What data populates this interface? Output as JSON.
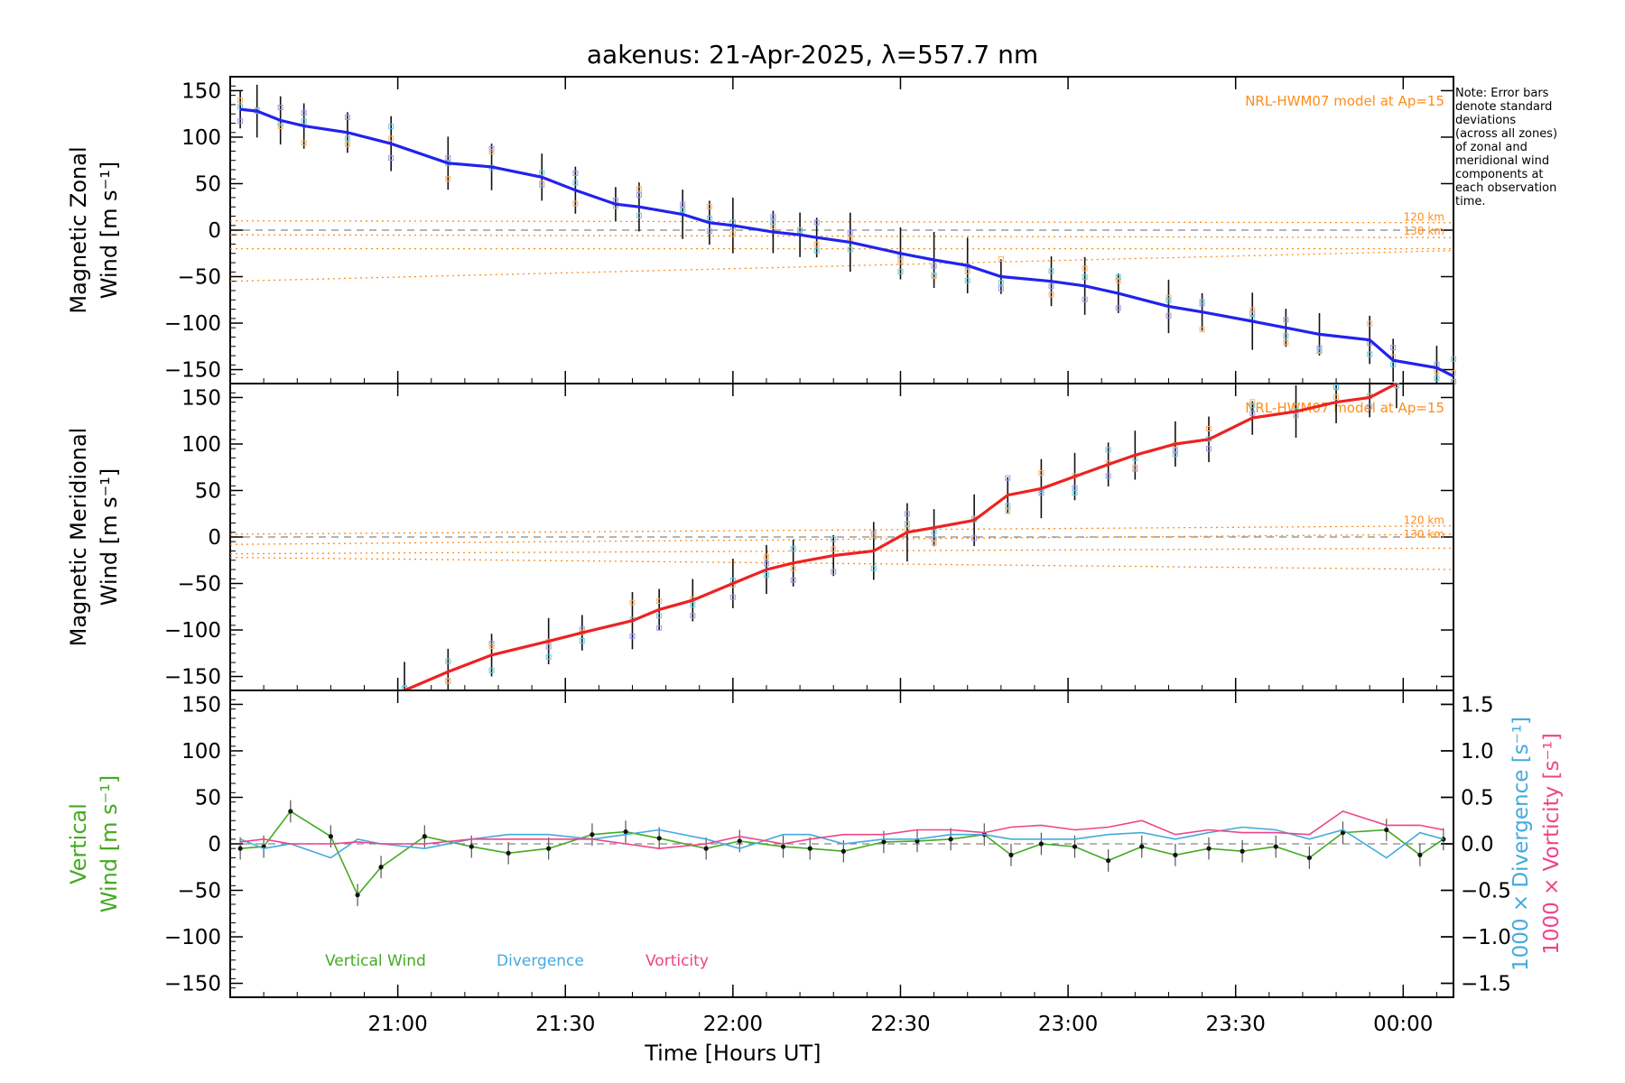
{
  "title": "aakenus: 21-Apr-2025, λ=557.7 nm",
  "note": [
    "Note: Error bars",
    "denote standard",
    "deviations",
    "(across all zones)",
    "of zonal and",
    "meridional wind",
    "components at",
    "each observation",
    "time."
  ],
  "colors": {
    "zonal": "#2222ee",
    "meridional": "#ee2222",
    "vertical": "#44aa22",
    "divergence": "#44aadd",
    "vorticity": "#ee4488",
    "model": "#ff8c1a",
    "axis": "#000000",
    "zero": "#888888"
  },
  "chart_data": {
    "type": "line",
    "xlabel": "Time [Hours UT]",
    "x_ticks": [
      "21:00",
      "21:30",
      "22:00",
      "22:30",
      "23:00",
      "23:30",
      "00:00"
    ],
    "x_tick_hours": [
      21,
      21.5,
      22,
      22.5,
      23,
      23.5,
      24
    ],
    "x_range_hours": [
      20.5,
      24.15
    ],
    "model_label": "NRL-HWM07 model at Ap=15",
    "model_altitudes": [
      "120 km",
      "130 km"
    ],
    "panels": [
      {
        "ylabel_lines": [
          "Magnetic Zonal",
          "Wind [m s⁻¹]"
        ],
        "ylim": [
          -165,
          165
        ],
        "yticks": [
          150,
          100,
          50,
          0,
          -50,
          -100,
          -150
        ],
        "series": [
          {
            "name": "Zonal wind",
            "times": [
              20.53,
              20.58,
              20.65,
              20.72,
              20.85,
              20.98,
              21.15,
              21.28,
              21.43,
              21.53,
              21.65,
              21.72,
              21.85,
              21.93,
              22.0,
              22.12,
              22.2,
              22.25,
              22.35,
              22.5,
              22.6,
              22.7,
              22.8,
              22.95,
              23.05,
              23.15,
              23.3,
              23.4,
              23.55,
              23.65,
              23.75,
              23.9,
              23.97,
              24.1,
              24.15
            ],
            "values": [
              130,
              128,
              118,
              112,
              105,
              93,
              72,
              68,
              57,
              43,
              28,
              25,
              17,
              8,
              5,
              -2,
              -5,
              -8,
              -13,
              -25,
              -32,
              -38,
              -50,
              -55,
              -60,
              -68,
              -82,
              -88,
              -98,
              -105,
              -112,
              -118,
              -140,
              -148,
              -157
            ]
          }
        ]
      },
      {
        "ylabel_lines": [
          "Magnetic Meridional",
          "Wind [m s⁻¹]"
        ],
        "ylim": [
          -165,
          165
        ],
        "yticks": [
          150,
          100,
          50,
          0,
          -50,
          -100,
          -150
        ],
        "series": [
          {
            "name": "Meridional wind",
            "times": [
              21.02,
              21.15,
              21.28,
              21.45,
              21.55,
              21.7,
              21.78,
              21.88,
              22.0,
              22.1,
              22.18,
              22.3,
              22.42,
              22.52,
              22.6,
              22.72,
              22.82,
              22.92,
              23.02,
              23.12,
              23.2,
              23.32,
              23.42,
              23.55,
              23.68,
              23.8,
              23.9,
              23.98
            ],
            "values": [
              -165,
              -145,
              -127,
              -112,
              -103,
              -90,
              -78,
              -68,
              -50,
              -35,
              -28,
              -20,
              -15,
              5,
              10,
              18,
              45,
              52,
              65,
              78,
              88,
              100,
              105,
              128,
              135,
              145,
              150,
              168
            ]
          }
        ]
      },
      {
        "ylabel_lines": [
          "Vertical",
          "Wind [m s⁻¹]"
        ],
        "ylim": [
          -165,
          165
        ],
        "yticks": [
          150,
          100,
          50,
          0,
          -50,
          -100,
          -150
        ],
        "right_axis": {
          "ylim": [
            -1.65,
            1.65
          ],
          "ticks": [
            "1.5",
            "1.0",
            "0.5",
            "0.0",
            "−0.5",
            "−1.0",
            "−1.5"
          ],
          "tick_values": [
            1.5,
            1.0,
            0.5,
            0.0,
            -0.5,
            -1.0,
            -1.5
          ],
          "label_divergence": "1000 × Divergence [s⁻¹]",
          "label_vorticity": "1000 × Vorticity [s⁻¹]"
        },
        "legend": [
          "Vertical Wind",
          "Divergence",
          "Vorticity"
        ],
        "series": [
          {
            "name": "Vertical Wind",
            "axis": "left",
            "times": [
              20.53,
              20.6,
              20.68,
              20.8,
              20.88,
              20.95,
              21.08,
              21.22,
              21.33,
              21.45,
              21.58,
              21.68,
              21.78,
              21.92,
              22.02,
              22.15,
              22.23,
              22.33,
              22.45,
              22.55,
              22.65,
              22.75,
              22.83,
              22.92,
              23.02,
              23.12,
              23.22,
              23.32,
              23.42,
              23.52,
              23.62,
              23.72,
              23.82,
              23.95,
              24.05,
              24.12
            ],
            "values": [
              -5,
              -3,
              35,
              8,
              -55,
              -25,
              8,
              -3,
              -10,
              -5,
              10,
              13,
              6,
              -5,
              3,
              -3,
              -5,
              -8,
              2,
              3,
              5,
              10,
              -12,
              0,
              -3,
              -18,
              -3,
              -12,
              -5,
              -8,
              -3,
              -15,
              12,
              15,
              -12,
              5
            ]
          },
          {
            "name": "Divergence",
            "axis": "right",
            "times": [
              20.53,
              20.6,
              20.68,
              20.8,
              20.88,
              20.95,
              21.08,
              21.22,
              21.33,
              21.45,
              21.58,
              21.68,
              21.78,
              21.92,
              22.02,
              22.15,
              22.23,
              22.33,
              22.45,
              22.55,
              22.65,
              22.75,
              22.83,
              22.92,
              23.02,
              23.12,
              23.22,
              23.32,
              23.42,
              23.52,
              23.62,
              23.72,
              23.82,
              23.95,
              24.05,
              24.12
            ],
            "values": [
              0.05,
              -0.05,
              0.0,
              -0.15,
              0.05,
              0.0,
              -0.05,
              0.05,
              0.1,
              0.1,
              0.05,
              0.1,
              0.15,
              0.05,
              -0.05,
              0.1,
              0.1,
              0.0,
              0.05,
              0.05,
              0.1,
              0.1,
              0.05,
              0.05,
              0.05,
              0.1,
              0.12,
              0.05,
              0.12,
              0.18,
              0.15,
              0.05,
              0.15,
              -0.15,
              0.12,
              0.05
            ]
          },
          {
            "name": "Vorticity",
            "axis": "right",
            "times": [
              20.53,
              20.6,
              20.68,
              20.8,
              20.88,
              20.95,
              21.08,
              21.22,
              21.33,
              21.45,
              21.58,
              21.68,
              21.78,
              21.92,
              22.02,
              22.15,
              22.23,
              22.33,
              22.45,
              22.55,
              22.65,
              22.75,
              22.83,
              22.92,
              23.02,
              23.12,
              23.22,
              23.32,
              23.42,
              23.52,
              23.62,
              23.72,
              23.82,
              23.95,
              24.05,
              24.12
            ],
            "values": [
              0.02,
              0.05,
              0.0,
              0.0,
              0.02,
              0.0,
              0.0,
              0.05,
              0.05,
              0.05,
              0.05,
              0.0,
              -0.05,
              0.0,
              0.08,
              0.0,
              0.05,
              0.1,
              0.1,
              0.15,
              0.15,
              0.12,
              0.18,
              0.2,
              0.15,
              0.18,
              0.25,
              0.1,
              0.15,
              0.12,
              0.12,
              0.1,
              0.35,
              0.2,
              0.2,
              0.15
            ]
          }
        ]
      }
    ]
  }
}
